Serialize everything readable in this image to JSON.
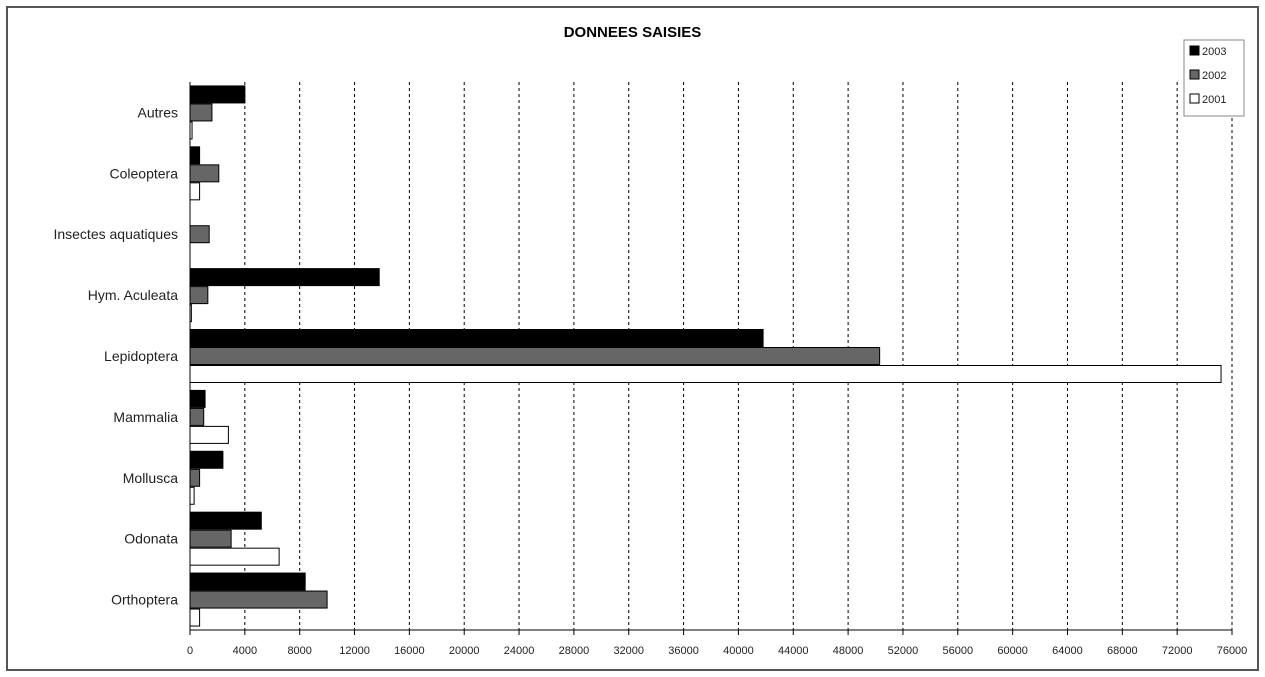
{
  "chart_data": {
    "type": "bar",
    "orientation": "horizontal",
    "title": "DONNEES SAISIES",
    "xlabel": "",
    "ylabel": "",
    "xlim": [
      0,
      76000
    ],
    "grid": true,
    "legend_position": "top-right",
    "categories": [
      "Autres",
      "Coleoptera",
      "Insectes aquatiques",
      "Hym. Aculeata",
      "Lepidoptera",
      "Mammalia",
      "Mollusca",
      "Odonata",
      "Orthoptera"
    ],
    "series": [
      {
        "name": "2003",
        "color": "#000000",
        "values": [
          4000,
          700,
          0,
          13800,
          41800,
          1100,
          2400,
          5200,
          8400
        ]
      },
      {
        "name": "2002",
        "color": "#666666",
        "values": [
          1600,
          2100,
          1400,
          1300,
          50300,
          1000,
          700,
          3000,
          10000
        ]
      },
      {
        "name": "2001",
        "color": "#ffffff",
        "values": [
          150,
          700,
          0,
          100,
          75200,
          2800,
          300,
          6500,
          700
        ]
      }
    ],
    "x_ticks": [
      "0",
      "4000",
      "8000",
      "12000",
      "16000",
      "20000",
      "24000",
      "28000",
      "32000",
      "36000",
      "40000",
      "44000",
      "48000",
      "52000",
      "56000",
      "60000",
      "64000",
      "68000",
      "72000",
      "76000"
    ]
  }
}
